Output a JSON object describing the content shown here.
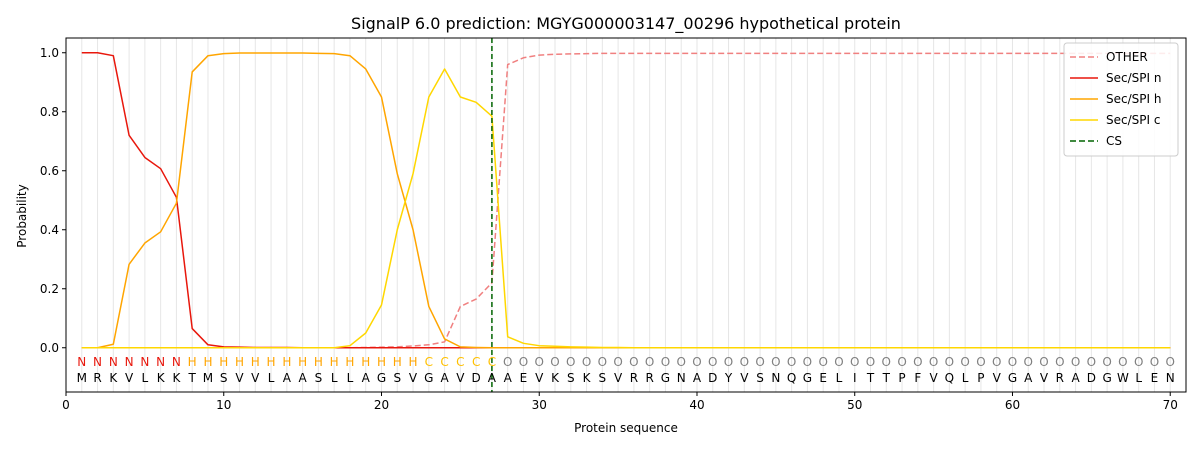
{
  "chart_data": {
    "type": "line",
    "title": "SignalP 6.0 prediction: MGYG000003147_00296 hypothetical protein",
    "xlabel": "Protein sequence",
    "ylabel": "Probability",
    "xlim": [
      0,
      71
    ],
    "ylim": [
      -0.15,
      1.05
    ],
    "xticks": [
      0,
      10,
      20,
      30,
      40,
      50,
      60,
      70
    ],
    "yticks": [
      0.0,
      0.2,
      0.4,
      0.6,
      0.8,
      1.0
    ],
    "grid": "vertical-per-residue",
    "legend_position": "top-right",
    "sequence": [
      "M",
      "R",
      "K",
      "V",
      "L",
      "K",
      "K",
      "T",
      "M",
      "S",
      "V",
      "V",
      "L",
      "A",
      "A",
      "S",
      "L",
      "L",
      "A",
      "G",
      "S",
      "V",
      "G",
      "A",
      "V",
      "D",
      "A",
      "A",
      "E",
      "V",
      "K",
      "S",
      "K",
      "S",
      "V",
      "R",
      "R",
      "G",
      "N",
      "A",
      "D",
      "Y",
      "V",
      "S",
      "N",
      "Q",
      "G",
      "E",
      "L",
      "I",
      "T",
      "T",
      "P",
      "F",
      "V",
      "Q",
      "L",
      "P",
      "V",
      "G",
      "A",
      "V",
      "R",
      "A",
      "D",
      "G",
      "W",
      "L",
      "E",
      "N"
    ],
    "labels": [
      "N",
      "N",
      "N",
      "N",
      "N",
      "N",
      "N",
      "H",
      "H",
      "H",
      "H",
      "H",
      "H",
      "H",
      "H",
      "H",
      "H",
      "H",
      "H",
      "H",
      "H",
      "H",
      "C",
      "C",
      "C",
      "C",
      "C",
      "O",
      "O",
      "O",
      "O",
      "O",
      "O",
      "O",
      "O",
      "O",
      "O",
      "O",
      "O",
      "O",
      "O",
      "O",
      "O",
      "O",
      "O",
      "O",
      "O",
      "O",
      "O",
      "O",
      "O",
      "O",
      "O",
      "O",
      "O",
      "O",
      "O",
      "O",
      "O",
      "O",
      "O",
      "O",
      "O",
      "O",
      "O",
      "O",
      "O",
      "O",
      "O",
      "O"
    ],
    "label_colors": {
      "N": "#e8170c",
      "H": "#ffa500",
      "C": "#ffc000",
      "O": "#808080"
    },
    "cleavage_site": 27,
    "series": [
      {
        "name": "OTHER",
        "color": "#f08080",
        "dash": "dashed",
        "values": [
          0.0,
          0.0,
          0.0,
          0.0,
          0.0,
          0.0,
          0.0,
          0.0,
          0.0,
          0.0,
          0.0,
          0.0,
          0.0,
          0.0,
          0.0,
          0.0,
          0.0,
          0.0,
          0.001,
          0.002,
          0.003,
          0.006,
          0.01,
          0.02,
          0.14,
          0.165,
          0.22,
          0.96,
          0.983,
          0.992,
          0.995,
          0.996,
          0.997,
          0.998,
          0.998,
          0.998,
          0.998,
          0.998,
          0.998,
          0.998,
          0.998,
          0.998,
          0.998,
          0.998,
          0.998,
          0.998,
          0.998,
          0.998,
          0.998,
          0.998,
          0.998,
          0.998,
          0.998,
          0.998,
          0.998,
          0.998,
          0.998,
          0.998,
          0.998,
          0.998,
          0.998,
          0.998,
          0.998,
          0.998,
          0.998,
          0.998,
          0.998,
          0.998,
          0.998,
          0.998
        ]
      },
      {
        "name": "Sec/SPI n",
        "color": "#e8170c",
        "dash": "solid",
        "values": [
          1.0,
          1.0,
          0.99,
          0.72,
          0.645,
          0.607,
          0.51,
          0.065,
          0.01,
          0.003,
          0.002,
          0.001,
          0.001,
          0.001,
          0.0,
          0.0,
          0.0,
          0.0,
          0.0,
          0.0,
          0.0,
          0.0,
          0.0,
          0.0,
          0.0,
          0.0,
          0.0,
          0.0,
          0.0,
          0.0,
          0.0,
          0.0,
          0.0,
          0.0,
          0.0,
          0.0,
          0.0,
          0.0,
          0.0,
          0.0,
          0.0,
          0.0,
          0.0,
          0.0,
          0.0,
          0.0,
          0.0,
          0.0,
          0.0,
          0.0,
          0.0,
          0.0,
          0.0,
          0.0,
          0.0,
          0.0,
          0.0,
          0.0,
          0.0,
          0.0,
          0.0,
          0.0,
          0.0,
          0.0,
          0.0,
          0.0,
          0.0,
          0.0,
          0.0,
          0.0
        ]
      },
      {
        "name": "Sec/SPI h",
        "color": "#ffa500",
        "dash": "solid",
        "values": [
          0.0,
          0.0,
          0.012,
          0.283,
          0.355,
          0.393,
          0.49,
          0.935,
          0.99,
          0.997,
          0.999,
          0.999,
          0.999,
          0.999,
          0.999,
          0.998,
          0.997,
          0.99,
          0.945,
          0.85,
          0.59,
          0.4,
          0.14,
          0.03,
          0.003,
          0.001,
          0.0,
          0.0,
          0.0,
          0.0,
          0.0,
          0.0,
          0.0,
          0.0,
          0.0,
          0.0,
          0.0,
          0.0,
          0.0,
          0.0,
          0.0,
          0.0,
          0.0,
          0.0,
          0.0,
          0.0,
          0.0,
          0.0,
          0.0,
          0.0,
          0.0,
          0.0,
          0.0,
          0.0,
          0.0,
          0.0,
          0.0,
          0.0,
          0.0,
          0.0,
          0.0,
          0.0,
          0.0,
          0.0,
          0.0,
          0.0,
          0.0,
          0.0,
          0.0,
          0.0
        ]
      },
      {
        "name": "Sec/SPI c",
        "color": "#ffd700",
        "dash": "solid",
        "values": [
          0.0,
          0.0,
          0.0,
          0.0,
          0.0,
          0.0,
          0.0,
          0.0,
          0.0,
          0.0,
          0.0,
          0.0,
          0.0,
          0.0,
          0.0,
          0.0,
          0.0,
          0.007,
          0.05,
          0.145,
          0.4,
          0.59,
          0.85,
          0.945,
          0.85,
          0.832,
          0.785,
          0.037,
          0.015,
          0.007,
          0.005,
          0.003,
          0.002,
          0.001,
          0.001,
          0.0,
          0.0,
          0.0,
          0.0,
          0.0,
          0.0,
          0.0,
          0.0,
          0.0,
          0.0,
          0.0,
          0.0,
          0.0,
          0.0,
          0.0,
          0.0,
          0.0,
          0.0,
          0.0,
          0.0,
          0.0,
          0.0,
          0.0,
          0.0,
          0.0,
          0.0,
          0.0,
          0.0,
          0.0,
          0.0,
          0.0,
          0.0,
          0.0,
          0.0,
          0.0
        ]
      }
    ],
    "cs_legend": {
      "name": "CS",
      "color": "#006400",
      "dash": "dashed"
    }
  }
}
